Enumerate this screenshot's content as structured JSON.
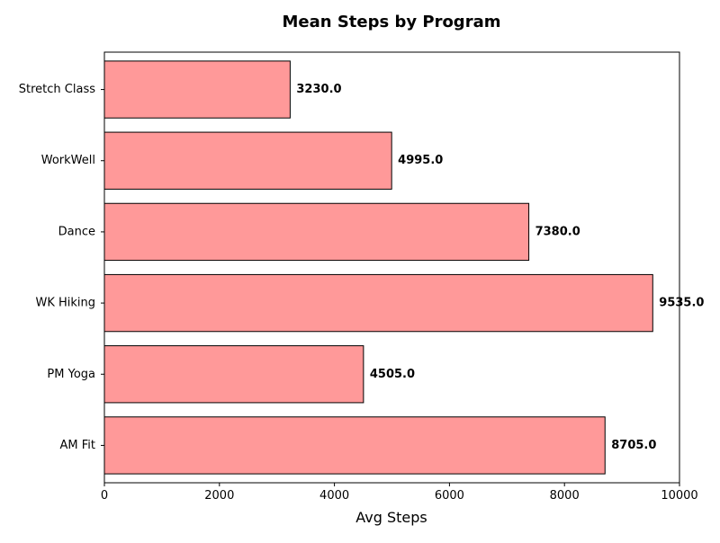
{
  "chart_data": {
    "type": "bar",
    "orientation": "horizontal",
    "title": "Mean Steps by Program",
    "xlabel": "Avg Steps",
    "ylabel": "",
    "categories": [
      "AM Fit",
      "PM Yoga",
      "WK Hiking",
      "Dance",
      "WorkWell",
      "Stretch Class"
    ],
    "values": [
      8705.0,
      4505.0,
      9535.0,
      7380.0,
      4995.0,
      3230.0
    ],
    "data_labels": [
      "8705.0",
      "4505.0",
      "9535.0",
      "7380.0",
      "4995.0",
      "3230.0"
    ],
    "xlim": [
      0,
      10000
    ],
    "xticks": [
      0,
      2000,
      4000,
      6000,
      8000,
      10000
    ],
    "xtick_labels": [
      "0",
      "2000",
      "4000",
      "6000",
      "8000",
      "10000"
    ],
    "grid": false,
    "legend": "none",
    "bar_color": "#ff9999",
    "bar_edge_color": "#000000"
  }
}
